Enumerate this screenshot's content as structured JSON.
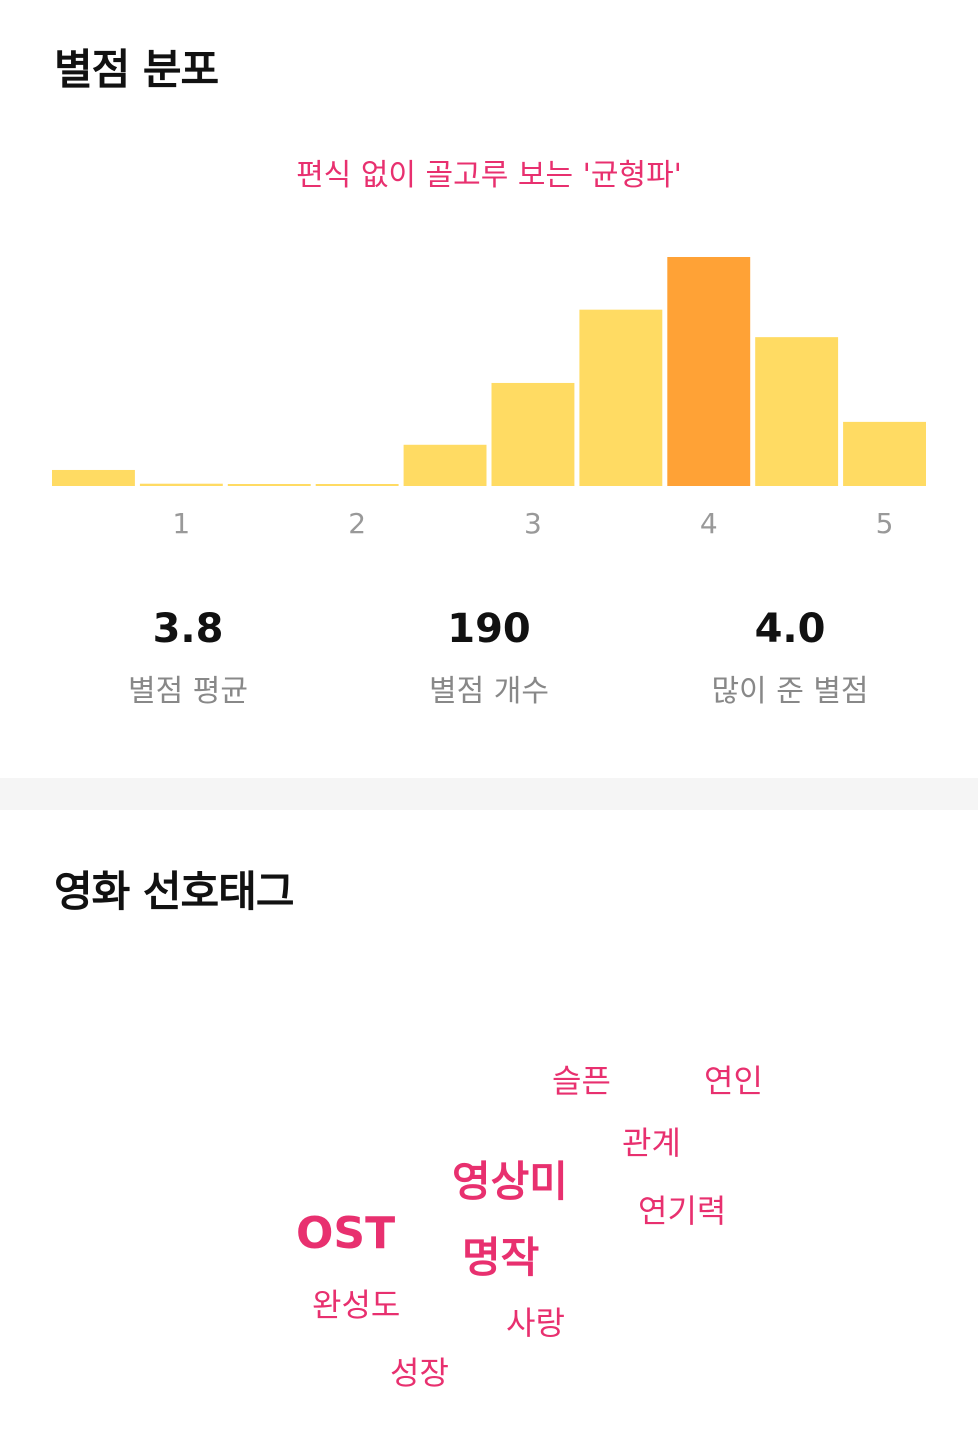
{
  "rating_section": {
    "title": "별점 분포",
    "subtitle": "편식 없이 골고루 보는 '균형파'"
  },
  "chart_data": {
    "type": "bar",
    "categories": [
      "0.5",
      "1",
      "1.5",
      "2",
      "2.5",
      "3",
      "3.5",
      "4",
      "4.5",
      "5"
    ],
    "values": [
      7,
      1,
      0.6,
      0.6,
      18,
      45,
      77,
      100,
      65,
      28
    ],
    "highlight_index": 7,
    "tick_labels": [
      "1",
      "2",
      "3",
      "4",
      "5"
    ],
    "colors": {
      "bar": "#ffdb63",
      "highlight": "#ffa236"
    }
  },
  "stats": [
    {
      "value": "3.8",
      "label": "별점 평균"
    },
    {
      "value": "190",
      "label": "별점 개수"
    },
    {
      "value": "4.0",
      "label": "많이 준 별점"
    }
  ],
  "tags_section": {
    "title": "영화 선호태그",
    "tags": [
      "슬픈",
      "연인",
      "관계",
      "영상미",
      "연기력",
      "OST",
      "명작",
      "완성도",
      "사랑",
      "성장"
    ]
  },
  "colors": {
    "accent": "#e8306f",
    "muted": "#888888"
  }
}
